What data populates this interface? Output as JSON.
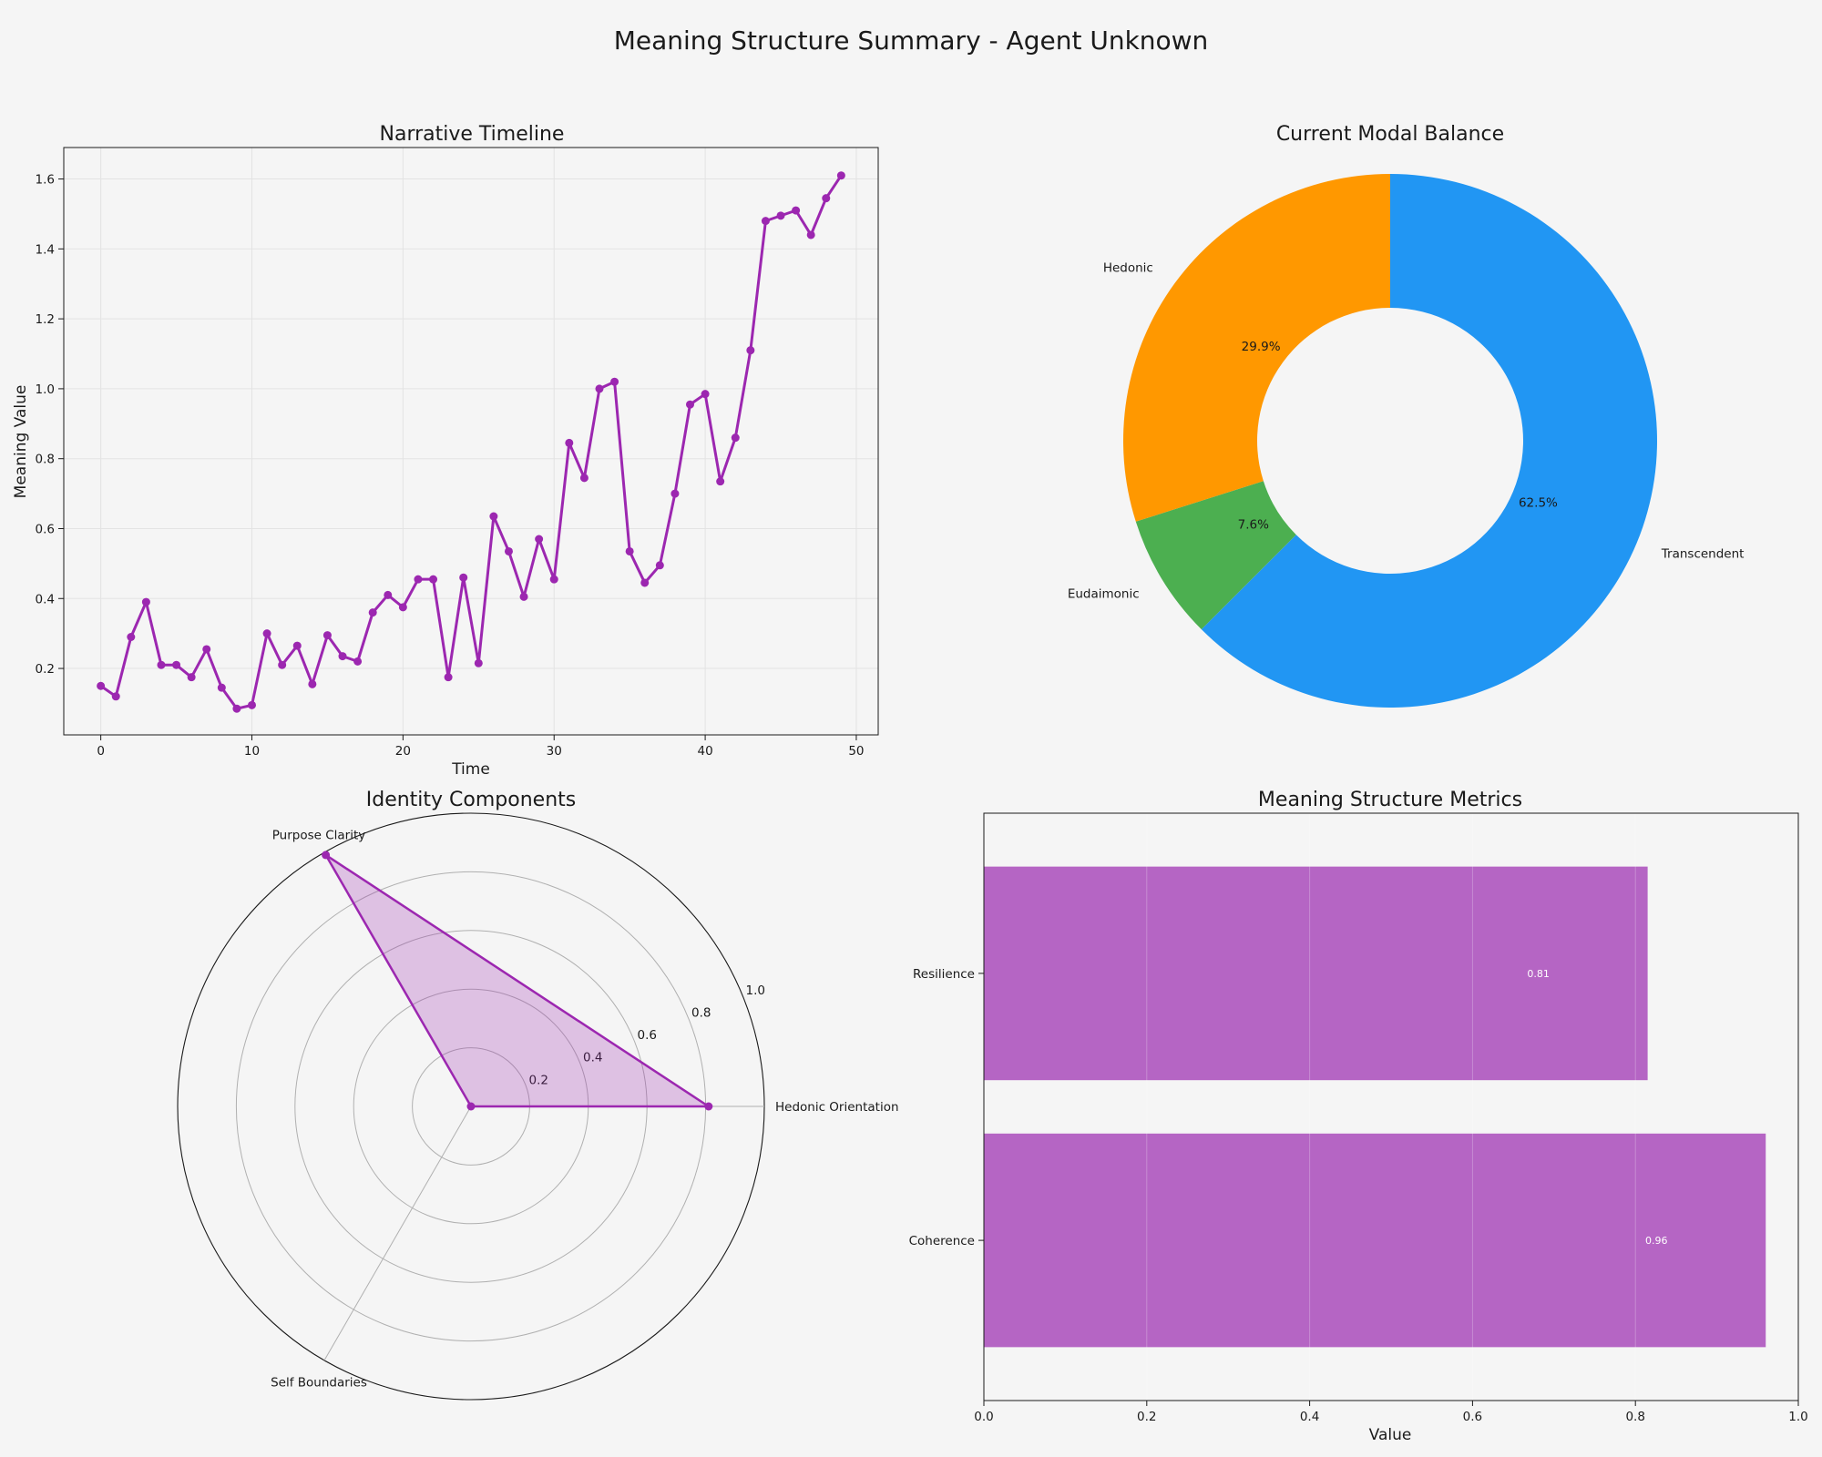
{
  "figure": {
    "title": "Meaning Structure Summary - Agent Unknown",
    "background": "#f5f5f5"
  },
  "chart_data": [
    {
      "type": "line",
      "title": "Narrative Timeline",
      "xlabel": "Time",
      "ylabel": "Meaning Value",
      "xlim": [
        -2.45,
        51.45
      ],
      "ylim": [
        0.01,
        1.69
      ],
      "xticks": [
        0,
        10,
        20,
        30,
        40,
        50
      ],
      "yticks": [
        0.2,
        0.4,
        0.6,
        0.8,
        1.0,
        1.2,
        1.4,
        1.6
      ],
      "grid": true,
      "color": "#9c27b0",
      "x": [
        0,
        1,
        2,
        3,
        4,
        5,
        6,
        7,
        8,
        9,
        10,
        11,
        12,
        13,
        14,
        15,
        16,
        17,
        18,
        19,
        20,
        21,
        22,
        23,
        24,
        25,
        26,
        27,
        28,
        29,
        30,
        31,
        32,
        33,
        34,
        35,
        36,
        37,
        38,
        39,
        40,
        41,
        42,
        43,
        44,
        45,
        46,
        47,
        48,
        49
      ],
      "values": [
        0.15,
        0.12,
        0.29,
        0.39,
        0.21,
        0.21,
        0.175,
        0.255,
        0.145,
        0.085,
        0.095,
        0.3,
        0.21,
        0.265,
        0.155,
        0.295,
        0.235,
        0.22,
        0.36,
        0.41,
        0.375,
        0.455,
        0.455,
        0.175,
        0.46,
        0.215,
        0.635,
        0.535,
        0.405,
        0.57,
        0.455,
        0.845,
        0.745,
        1.0,
        1.02,
        0.535,
        0.445,
        0.495,
        0.7,
        0.955,
        0.985,
        0.735,
        0.86,
        1.11,
        1.48,
        1.495,
        1.51,
        1.44,
        1.545,
        1.61
      ]
    },
    {
      "type": "pie",
      "title": "Current Modal Balance",
      "donut": true,
      "labels": [
        "Transcendent",
        "Eudaimonic",
        "Hedonic"
      ],
      "percent_labels": [
        "62.5%",
        "7.6%",
        "29.9%"
      ],
      "values": [
        62.5,
        7.6,
        29.9
      ],
      "colors": [
        "#2196f3",
        "#4caf50",
        "#ff9800"
      ],
      "start_angle_deg": 90,
      "direction": "clockwise"
    },
    {
      "type": "radar",
      "title": "Identity Components",
      "axes": [
        "Hedonic Orientation",
        "Purpose Clarity",
        "Self Boundaries"
      ],
      "values": [
        0.81,
        0.99,
        0.0
      ],
      "rlim": [
        0,
        1.0
      ],
      "rticks": [
        0.2,
        0.4,
        0.6,
        0.8,
        1.0
      ],
      "rtick_labels": [
        "0.2",
        "0.4",
        "0.6",
        "0.8",
        "1.0"
      ],
      "color": "#9c27b0"
    },
    {
      "type": "bar",
      "orientation": "horizontal",
      "title": "Meaning Structure Metrics",
      "xlabel": "Value",
      "categories": [
        "Coherence",
        "Resilience"
      ],
      "values": [
        0.96,
        0.815
      ],
      "value_labels": [
        "0.96",
        "0.81"
      ],
      "xlim": [
        0,
        1.0
      ],
      "xticks": [
        0.0,
        0.2,
        0.4,
        0.6,
        0.8,
        1.0
      ],
      "xtick_labels": [
        "0.0",
        "0.2",
        "0.4",
        "0.6",
        "0.8",
        "1.0"
      ],
      "grid": true,
      "color": "#b565c4"
    }
  ]
}
